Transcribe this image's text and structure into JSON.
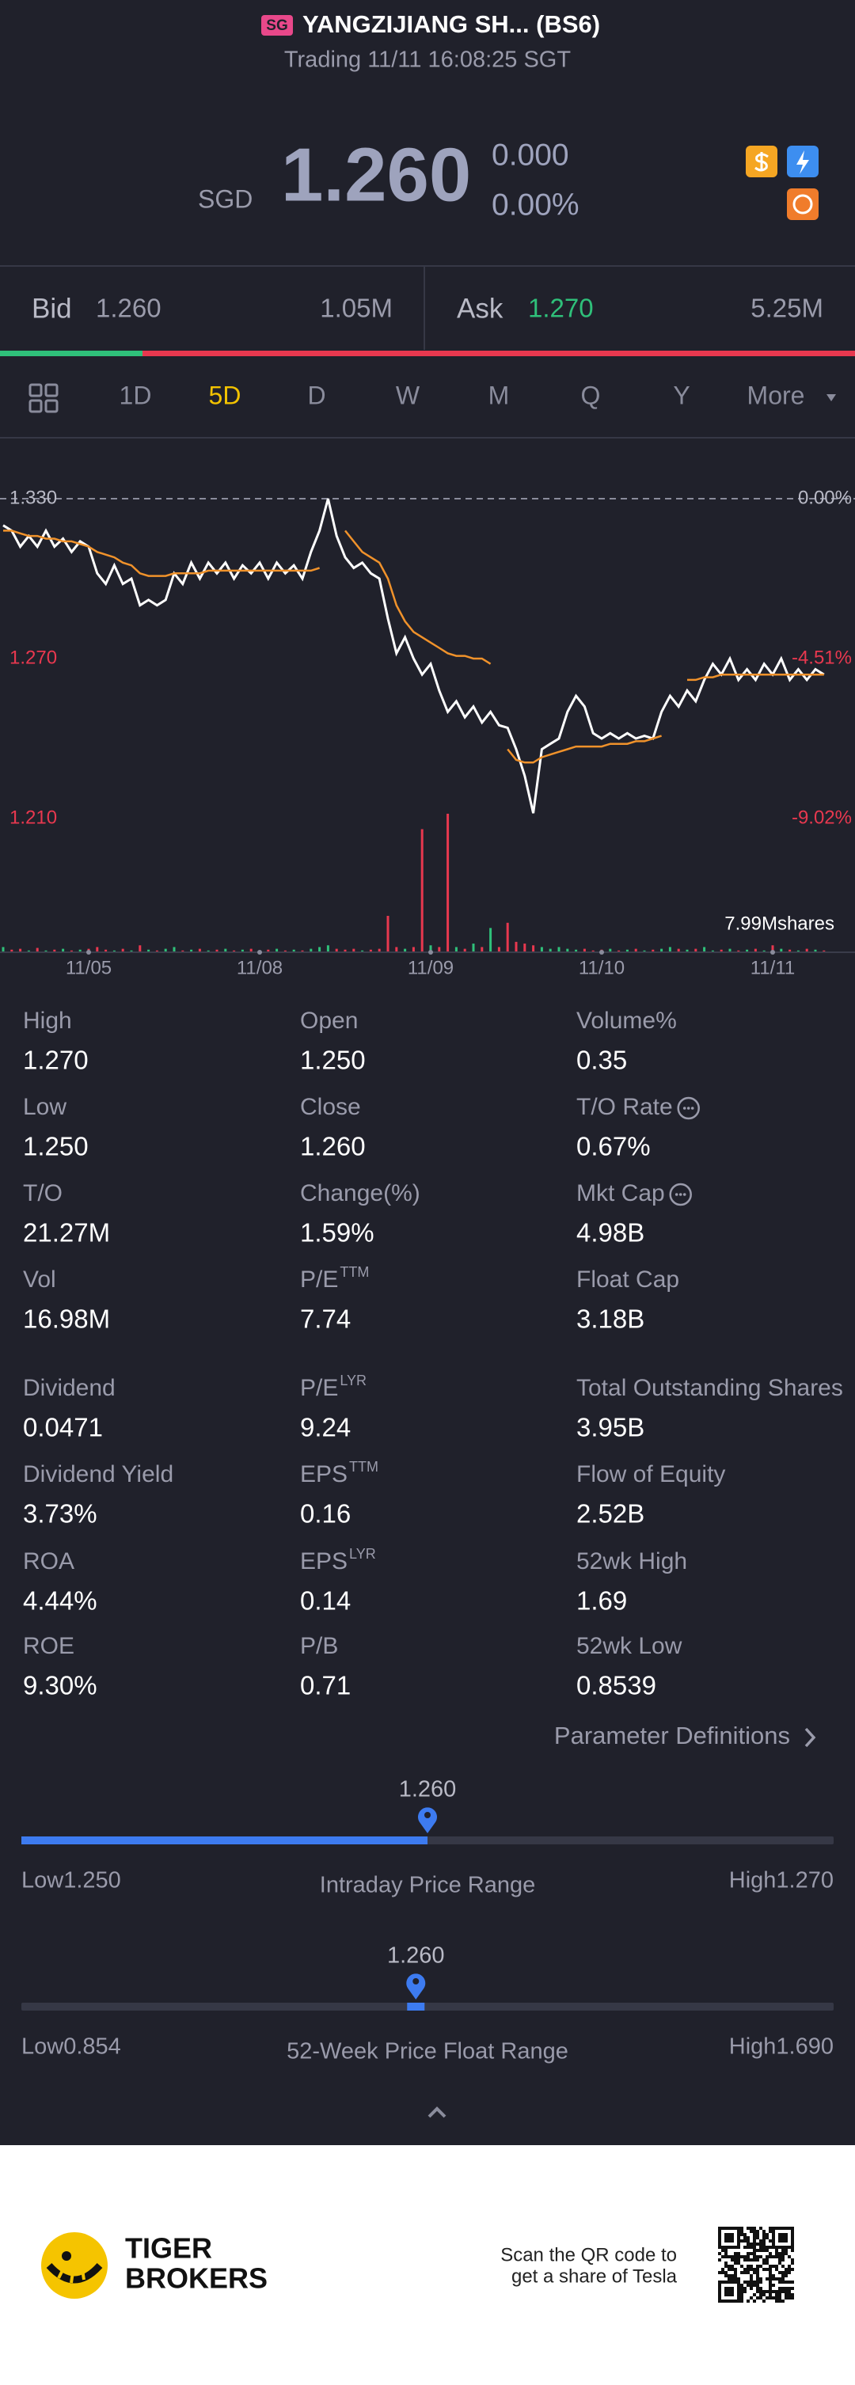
{
  "header": {
    "badge": "SG",
    "title": "YANGZIJIANG SH... (BS6)",
    "status": "Trading 11/11 16:08:25 SGT"
  },
  "quote": {
    "currency": "SGD",
    "price": "1.260",
    "change": "0.000",
    "change_pct": "0.00%"
  },
  "book": {
    "bid_label": "Bid",
    "bid": "1.260",
    "bid_size": {
      "value": 1.05,
      "label": "1.05M"
    },
    "ask_label": "Ask",
    "ask": "1.270",
    "ask_size": {
      "value": 5.25,
      "label": "5.25M"
    }
  },
  "tabs": {
    "items": [
      "1D",
      "5D",
      "D",
      "W",
      "M",
      "Q",
      "Y",
      "More"
    ],
    "active": 1
  },
  "chart_data": {
    "type": "line",
    "categories": [
      null,
      null,
      null,
      null,
      null,
      null,
      null,
      null,
      null,
      null,
      "11/05",
      null,
      null,
      null,
      null,
      null,
      null,
      null,
      null,
      null,
      null,
      null,
      null,
      null,
      null,
      null,
      null,
      null,
      null,
      null,
      "11/08",
      null,
      null,
      null,
      null,
      null,
      null,
      null,
      null,
      null,
      null,
      null,
      null,
      null,
      null,
      null,
      null,
      null,
      null,
      null,
      "11/09",
      null,
      null,
      null,
      null,
      null,
      null,
      null,
      null,
      null,
      null,
      null,
      null,
      null,
      null,
      null,
      null,
      null,
      null,
      null,
      "11/10",
      null,
      null,
      null,
      null,
      null,
      null,
      null,
      null,
      null,
      null,
      null,
      null,
      null,
      null,
      null,
      null,
      null,
      null,
      null,
      "11/11",
      null,
      null,
      null,
      null,
      null,
      null
    ],
    "series": [
      {
        "name": "Price",
        "color": "#ffffff",
        "values": [
          1.32,
          1.318,
          1.312,
          1.316,
          1.312,
          1.318,
          1.312,
          1.315,
          1.31,
          1.314,
          1.312,
          1.302,
          1.298,
          1.305,
          1.298,
          1.3,
          1.29,
          1.292,
          1.29,
          1.292,
          1.302,
          1.298,
          1.306,
          1.3,
          1.306,
          1.302,
          1.306,
          1.3,
          1.305,
          1.302,
          1.306,
          1.3,
          1.306,
          1.302,
          1.305,
          1.3,
          1.31,
          1.318,
          1.33,
          1.316,
          1.308,
          1.304,
          1.306,
          1.302,
          1.3,
          1.285,
          1.272,
          1.278,
          1.27,
          1.264,
          1.268,
          1.258,
          1.25,
          1.254,
          1.248,
          1.252,
          1.246,
          1.25,
          1.245,
          1.244,
          1.236,
          1.226,
          1.212,
          1.236,
          1.238,
          1.24,
          1.25,
          1.256,
          1.252,
          1.242,
          1.24,
          1.242,
          1.24,
          1.242,
          1.24,
          1.241,
          1.24,
          1.25,
          1.256,
          1.252,
          1.258,
          1.254,
          1.262,
          1.268,
          1.264,
          1.27,
          1.262,
          1.266,
          1.262,
          1.268,
          1.264,
          1.27,
          1.262,
          1.266,
          1.262,
          1.266,
          1.264
        ]
      },
      {
        "name": "Average",
        "color": "#f0922b",
        "values": [
          1.318,
          1.318,
          1.317,
          1.316,
          1.316,
          1.315,
          1.315,
          1.314,
          1.314,
          1.313,
          1.312,
          1.31,
          1.309,
          1.308,
          1.306,
          1.305,
          1.302,
          1.301,
          1.301,
          1.301,
          1.302,
          1.302,
          1.302,
          1.302,
          1.303,
          1.303,
          1.303,
          1.303,
          1.303,
          1.303,
          1.303,
          1.303,
          1.303,
          1.303,
          1.303,
          1.303,
          1.303,
          1.304,
          null,
          null,
          1.318,
          1.314,
          1.31,
          1.308,
          1.306,
          1.3,
          1.29,
          1.284,
          1.28,
          1.278,
          1.276,
          1.274,
          1.272,
          1.271,
          1.271,
          1.27,
          1.27,
          1.268,
          null,
          1.236,
          1.232,
          1.231,
          1.231,
          1.233,
          1.234,
          1.235,
          1.236,
          1.237,
          1.237,
          1.237,
          1.237,
          1.238,
          1.238,
          1.238,
          1.239,
          1.239,
          1.24,
          1.241,
          null,
          null,
          1.262,
          1.262,
          1.263,
          1.263,
          1.264,
          1.264,
          1.264,
          1.264,
          1.264,
          1.264,
          1.264,
          1.264,
          1.264,
          1.264,
          1.264,
          1.264,
          1.264
        ]
      },
      {
        "name": "Volume",
        "type": "bar",
        "axis": "volume",
        "up_color": "#2fc07a",
        "down_color": "#e8384f",
        "values": [
          0.3,
          0.15,
          0.2,
          0.1,
          0.25,
          0.1,
          0.15,
          0.2,
          0.1,
          0.15,
          0.2,
          0.3,
          0.15,
          0.1,
          0.2,
          0.1,
          0.4,
          0.15,
          0.1,
          0.2,
          0.3,
          0.1,
          0.15,
          0.2,
          0.1,
          0.15,
          0.2,
          0.1,
          0.15,
          0.2,
          0.1,
          0.15,
          0.2,
          0.1,
          0.15,
          0.1,
          0.2,
          0.3,
          0.4,
          0.2,
          0.15,
          0.2,
          0.1,
          0.15,
          0.2,
          2.1,
          0.3,
          0.2,
          0.3,
          7.1,
          0.4,
          0.3,
          7.99,
          0.3,
          0.2,
          0.5,
          0.3,
          1.4,
          0.3,
          1.7,
          0.6,
          0.5,
          0.4,
          0.3,
          0.2,
          0.3,
          0.2,
          0.15,
          0.2,
          0.1,
          0.15,
          0.2,
          0.1,
          0.15,
          0.2,
          0.1,
          0.15,
          0.2,
          0.3,
          0.2,
          0.15,
          0.2,
          0.3,
          0.1,
          0.15,
          0.2,
          0.1,
          0.15,
          0.2,
          0.1,
          0.4,
          0.2,
          0.15,
          0.1,
          0.2,
          0.15,
          0.1
        ]
      }
    ],
    "ylim": [
      1.21,
      1.33
    ],
    "yticks": [
      {
        "value": 1.33,
        "label": "1.330"
      },
      {
        "value": 1.27,
        "label": "1.270"
      },
      {
        "value": 1.21,
        "label": "1.210"
      }
    ],
    "y2lim": [
      -9.02,
      0
    ],
    "y2ticks": [
      {
        "value": 0,
        "label": "0.00%"
      },
      {
        "value": -4.51,
        "label": "-4.51%"
      },
      {
        "value": -9.02,
        "label": "-9.02%"
      }
    ],
    "volume_lim": [
      0,
      7.99
    ],
    "annotation": "7.99Mshares",
    "prev_close_line": true
  },
  "stats": [
    {
      "label": "High",
      "value": "1.270"
    },
    {
      "label": "Open",
      "value": "1.250"
    },
    {
      "label": "Volume%",
      "value": "0.35"
    },
    {
      "label": "Low",
      "value": "1.250"
    },
    {
      "label": "Close",
      "value": "1.260"
    },
    {
      "label": "T/O Rate",
      "value": "0.67%",
      "info": true
    },
    {
      "label": "T/O",
      "value": "21.27M"
    },
    {
      "label": "Change(%)",
      "value": "1.59%"
    },
    {
      "label": "Mkt Cap",
      "value": "4.98B",
      "info": true
    },
    {
      "label": "Vol",
      "value": "16.98M"
    },
    {
      "label": "P/E",
      "sup": "TTM",
      "value": "7.74"
    },
    {
      "label": "Float Cap",
      "value": "3.18B"
    },
    {
      "label": "Dividend",
      "value": "0.0471"
    },
    {
      "label": "P/E",
      "sup": "LYR",
      "value": "9.24"
    },
    {
      "label": "Total Outstanding Shares",
      "value": "3.95B"
    },
    {
      "label": "Dividend Yield",
      "value": "3.73%"
    },
    {
      "label": "EPS",
      "sup": "TTM",
      "value": "0.16"
    },
    {
      "label": "Flow of Equity",
      "value": "2.52B"
    },
    {
      "label": "ROA",
      "value": "4.44%"
    },
    {
      "label": "EPS",
      "sup": "LYR",
      "value": "0.14"
    },
    {
      "label": "52wk High",
      "value": "1.69"
    },
    {
      "label": "ROE",
      "value": "9.30%"
    },
    {
      "label": "P/B",
      "value": "0.71"
    },
    {
      "label": "52wk Low",
      "value": "0.8539"
    }
  ],
  "definitions_link": "Parameter Definitions",
  "ranges": [
    {
      "current": {
        "value": 1.26,
        "label": "1.260"
      },
      "low": {
        "value": 1.25,
        "label": "Low1.250"
      },
      "high": {
        "value": 1.27,
        "label": "High1.270"
      },
      "title": "Intraday Price Range",
      "fill": "bar"
    },
    {
      "current": {
        "value": 1.26,
        "label": "1.260"
      },
      "low": {
        "value": 0.854,
        "label": "Low0.854"
      },
      "high": {
        "value": 1.69,
        "label": "High1.690"
      },
      "title": "52-Week Price Float Range",
      "fill": "marker"
    }
  ],
  "footer": {
    "brand_line1": "TIGER",
    "brand_line2": "BROKERS",
    "promo_line1": "Scan the QR code to",
    "promo_line2": "get a share of Tesla"
  }
}
